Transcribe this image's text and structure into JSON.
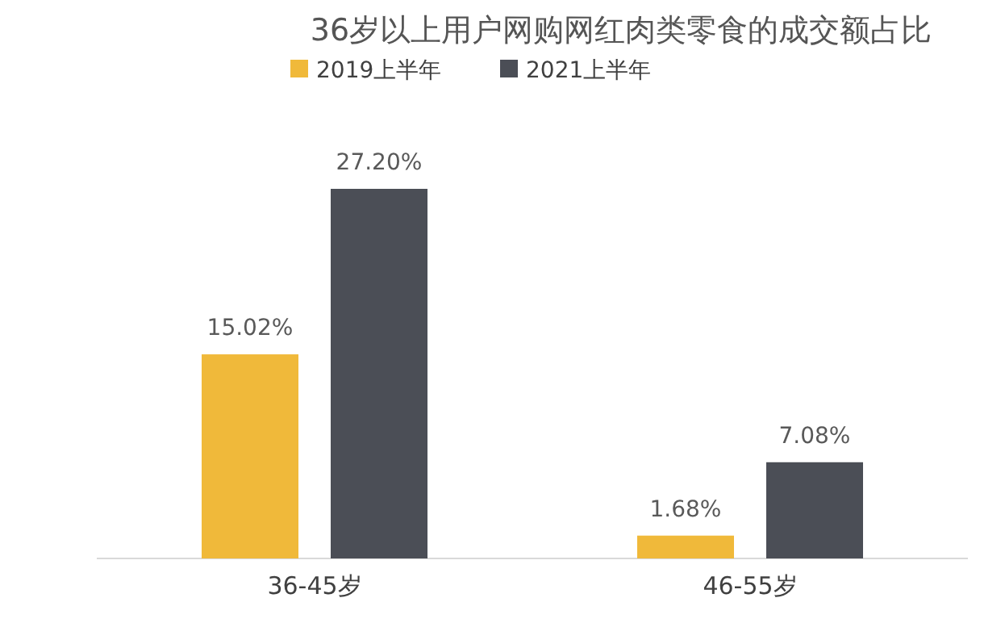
{
  "chart_data": {
    "type": "bar",
    "title": "36岁以上用户网购网红肉类零食的成交额占比",
    "categories": [
      "36-45岁",
      "46-55岁"
    ],
    "legend": "top left",
    "series": [
      {
        "name": "2019上半年",
        "color": "#f0b93a",
        "values": [
          15.02,
          1.68
        ],
        "value_labels": [
          "15.02%",
          "1.68%"
        ]
      },
      {
        "name": "2021上半年",
        "color": "#4b4e56",
        "values": [
          27.2,
          7.08
        ],
        "value_labels": [
          "27.20%",
          "7.08%"
        ]
      }
    ]
  }
}
